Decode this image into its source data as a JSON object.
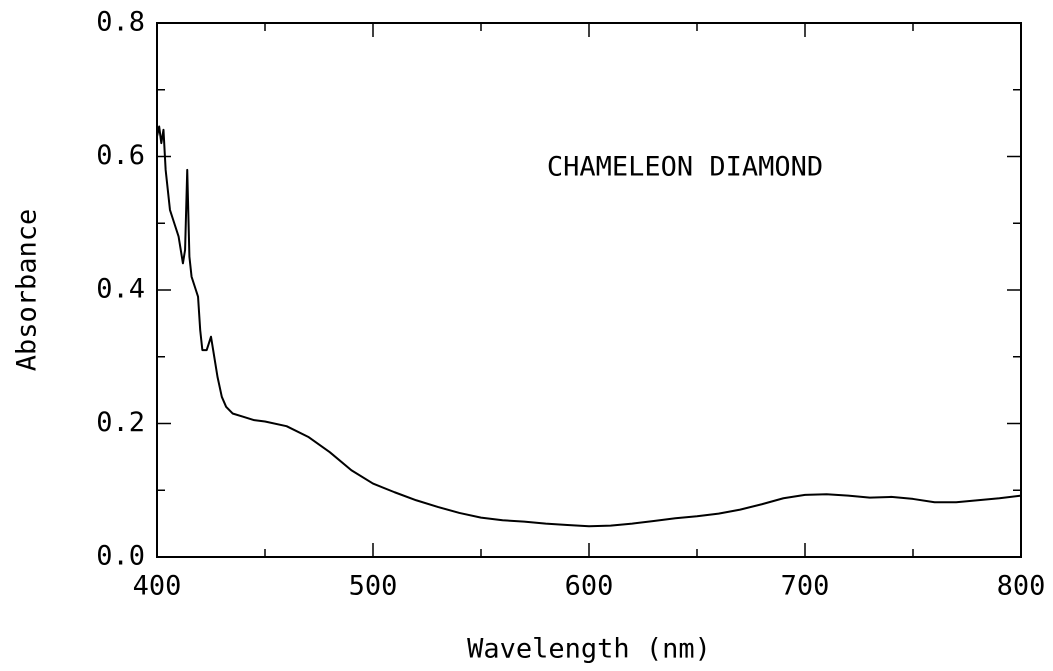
{
  "chart_data": {
    "type": "line",
    "annotation": "CHAMELEON DIAMOND",
    "xlabel": "Wavelength (nm)",
    "ylabel": "Absorbance",
    "xlim": [
      400,
      800
    ],
    "ylim": [
      0,
      0.8
    ],
    "xticks": [
      400,
      500,
      600,
      700,
      800
    ],
    "yticks": [
      {
        "value": 0,
        "label": "0.0"
      },
      0.2,
      0.4,
      0.6,
      0.8
    ],
    "xminorticks": [
      450,
      550,
      650,
      750
    ],
    "yminorticks": [
      0.1,
      0.3,
      0.5,
      0.7
    ],
    "x": [
      400,
      401,
      402,
      403,
      404,
      406,
      408,
      410,
      412,
      413,
      414,
      415,
      416,
      418,
      419,
      420,
      421,
      423,
      424,
      425,
      426,
      428,
      430,
      432,
      435,
      440,
      445,
      450,
      460,
      470,
      480,
      490,
      500,
      510,
      520,
      530,
      540,
      550,
      560,
      570,
      580,
      590,
      600,
      610,
      620,
      630,
      640,
      650,
      660,
      670,
      680,
      690,
      700,
      710,
      720,
      730,
      740,
      750,
      760,
      770,
      780,
      790,
      800
    ],
    "series": [
      {
        "color": "#000000",
        "values": [
          0.63,
          0.645,
          0.62,
          0.64,
          0.58,
          0.52,
          0.5,
          0.48,
          0.44,
          0.46,
          0.58,
          0.45,
          0.42,
          0.4,
          0.39,
          0.34,
          0.31,
          0.31,
          0.32,
          0.33,
          0.31,
          0.27,
          0.24,
          0.225,
          0.215,
          0.21,
          0.205,
          0.203,
          0.196,
          0.18,
          0.157,
          0.13,
          0.11,
          0.097,
          0.085,
          0.075,
          0.066,
          0.059,
          0.055,
          0.053,
          0.05,
          0.048,
          0.046,
          0.047,
          0.05,
          0.054,
          0.058,
          0.061,
          0.065,
          0.071,
          0.079,
          0.088,
          0.093,
          0.094,
          0.092,
          0.089,
          0.09,
          0.087,
          0.082,
          0.082,
          0.085,
          0.088,
          0.092
        ]
      }
    ]
  }
}
